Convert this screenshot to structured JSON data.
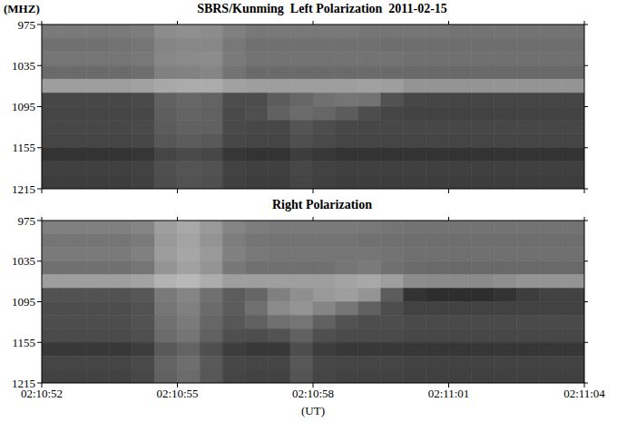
{
  "chart_data": [
    {
      "type": "heatmap",
      "title": "SBRS/Kunming  Left Polarization  2011-02-15",
      "y_label": "(MHZ)",
      "tick_labels": "y",
      "x": [
        52.25,
        52.75,
        53.25,
        53.75,
        54.25,
        54.75,
        55.25,
        55.75,
        56.25,
        56.75,
        57.25,
        57.75,
        58.25,
        58.75,
        59.25,
        59.75,
        60.25,
        60.75,
        61.25,
        61.75,
        62.25,
        62.75,
        63.25,
        63.75
      ],
      "y": [
        985,
        1005,
        1025,
        1045,
        1065,
        1085,
        1105,
        1125,
        1145,
        1165,
        1185,
        1205
      ],
      "xlim": [
        52,
        64
      ],
      "xticks": [
        {
          "value": 52,
          "label": "02:10:52"
        },
        {
          "value": 55,
          "label": "02:10:55"
        },
        {
          "value": 58,
          "label": "02:10:58"
        },
        {
          "value": 61,
          "label": "02:11:01"
        },
        {
          "value": 64,
          "label": "02:11:04"
        }
      ],
      "ylim": [
        975,
        1215
      ],
      "yticks": [
        975,
        1035,
        1095,
        1155,
        1215
      ],
      "zlim": [
        0,
        100
      ],
      "z": [
        [
          48,
          48,
          47,
          48,
          49,
          55,
          56,
          55,
          50,
          47,
          47,
          47,
          47,
          47,
          46,
          46,
          46,
          46,
          45,
          45,
          45,
          45,
          45,
          45
        ],
        [
          44,
          44,
          44,
          45,
          46,
          52,
          53,
          53,
          47,
          44,
          44,
          44,
          44,
          44,
          44,
          43,
          43,
          43,
          43,
          43,
          43,
          43,
          43,
          43
        ],
        [
          46,
          46,
          46,
          46,
          47,
          53,
          54,
          55,
          48,
          45,
          45,
          45,
          45,
          45,
          45,
          45,
          44,
          44,
          44,
          44,
          44,
          44,
          44,
          44
        ],
        [
          42,
          42,
          42,
          42,
          43,
          50,
          51,
          52,
          45,
          42,
          42,
          42,
          42,
          42,
          42,
          42,
          41,
          41,
          41,
          41,
          41,
          41,
          41,
          41
        ],
        [
          62,
          62,
          62,
          62,
          63,
          66,
          67,
          67,
          63,
          62,
          62,
          62,
          62,
          62,
          63,
          62,
          58,
          58,
          58,
          58,
          58,
          58,
          58,
          58
        ],
        [
          28,
          28,
          28,
          28,
          29,
          38,
          40,
          39,
          30,
          30,
          36,
          40,
          44,
          46,
          45,
          32,
          28,
          27,
          27,
          27,
          27,
          27,
          27,
          27
        ],
        [
          27,
          27,
          27,
          27,
          28,
          37,
          39,
          38,
          29,
          31,
          38,
          42,
          40,
          36,
          30,
          27,
          26,
          26,
          26,
          26,
          26,
          26,
          26,
          26
        ],
        [
          28,
          28,
          28,
          28,
          29,
          36,
          38,
          38,
          29,
          28,
          28,
          33,
          30,
          28,
          28,
          28,
          28,
          28,
          28,
          28,
          28,
          28,
          28,
          28
        ],
        [
          27,
          27,
          27,
          27,
          28,
          34,
          36,
          35,
          28,
          27,
          27,
          31,
          29,
          27,
          27,
          27,
          27,
          27,
          27,
          27,
          27,
          27,
          27,
          27
        ],
        [
          20,
          20,
          20,
          20,
          21,
          27,
          29,
          28,
          21,
          20,
          20,
          24,
          22,
          20,
          20,
          20,
          20,
          20,
          20,
          20,
          20,
          20,
          20,
          20
        ],
        [
          25,
          25,
          25,
          25,
          26,
          31,
          33,
          32,
          26,
          25,
          25,
          28,
          26,
          25,
          25,
          25,
          25,
          25,
          25,
          25,
          25,
          25,
          25,
          25
        ],
        [
          24,
          24,
          24,
          24,
          25,
          30,
          32,
          31,
          25,
          24,
          24,
          27,
          25,
          24,
          24,
          24,
          24,
          24,
          24,
          24,
          24,
          24,
          24,
          24
        ]
      ]
    },
    {
      "type": "heatmap",
      "title": "Right Polarization",
      "x_label": "(UT)",
      "x": [
        52.25,
        52.75,
        53.25,
        53.75,
        54.25,
        54.75,
        55.25,
        55.75,
        56.25,
        56.75,
        57.25,
        57.75,
        58.25,
        58.75,
        59.25,
        59.75,
        60.25,
        60.75,
        61.25,
        61.75,
        62.25,
        62.75,
        63.25,
        63.75
      ],
      "y": [
        985,
        1005,
        1025,
        1045,
        1065,
        1085,
        1105,
        1125,
        1145,
        1165,
        1185,
        1205
      ],
      "xlim": [
        52,
        64
      ],
      "xticks": [
        {
          "value": 52,
          "label": "02:10:52"
        },
        {
          "value": 55,
          "label": "02:10:55"
        },
        {
          "value": 58,
          "label": "02:10:58"
        },
        {
          "value": 61,
          "label": "02:11:01"
        },
        {
          "value": 64,
          "label": "02:11:04"
        }
      ],
      "ylim": [
        975,
        1215
      ],
      "yticks": [
        975,
        1035,
        1095,
        1155,
        1215
      ],
      "zlim": [
        0,
        100
      ],
      "z": [
        [
          50,
          50,
          50,
          50,
          52,
          62,
          66,
          60,
          52,
          49,
          48,
          48,
          48,
          48,
          47,
          46,
          45,
          45,
          45,
          45,
          45,
          45,
          45,
          45
        ],
        [
          46,
          46,
          46,
          46,
          48,
          60,
          64,
          58,
          49,
          46,
          45,
          45,
          45,
          45,
          44,
          44,
          43,
          43,
          43,
          43,
          43,
          43,
          43,
          43
        ],
        [
          48,
          48,
          48,
          48,
          50,
          61,
          65,
          60,
          50,
          47,
          46,
          46,
          46,
          46,
          46,
          45,
          44,
          44,
          44,
          44,
          44,
          44,
          44,
          44
        ],
        [
          44,
          44,
          44,
          44,
          46,
          58,
          63,
          58,
          47,
          44,
          44,
          44,
          44,
          46,
          48,
          44,
          42,
          41,
          41,
          41,
          41,
          41,
          41,
          41
        ],
        [
          62,
          62,
          62,
          62,
          64,
          70,
          72,
          68,
          62,
          62,
          62,
          62,
          62,
          64,
          66,
          62,
          55,
          54,
          54,
          54,
          56,
          58,
          58,
          58
        ],
        [
          32,
          32,
          32,
          32,
          34,
          48,
          52,
          44,
          36,
          40,
          50,
          56,
          60,
          62,
          58,
          36,
          20,
          18,
          18,
          18,
          20,
          24,
          26,
          26
        ],
        [
          30,
          30,
          30,
          30,
          32,
          46,
          50,
          42,
          36,
          44,
          54,
          58,
          52,
          46,
          38,
          30,
          26,
          26,
          26,
          26,
          26,
          26,
          26,
          26
        ],
        [
          30,
          30,
          30,
          30,
          32,
          44,
          48,
          40,
          34,
          38,
          44,
          46,
          38,
          32,
          30,
          30,
          29,
          29,
          29,
          29,
          29,
          29,
          29,
          29
        ],
        [
          29,
          29,
          29,
          29,
          31,
          42,
          46,
          38,
          31,
          30,
          32,
          38,
          31,
          29,
          29,
          29,
          28,
          28,
          28,
          28,
          28,
          28,
          28,
          28
        ],
        [
          22,
          22,
          22,
          22,
          24,
          35,
          39,
          31,
          24,
          22,
          22,
          30,
          24,
          22,
          22,
          22,
          21,
          21,
          21,
          21,
          21,
          21,
          21,
          21
        ],
        [
          27,
          27,
          27,
          27,
          29,
          39,
          43,
          35,
          28,
          27,
          27,
          34,
          28,
          27,
          27,
          27,
          26,
          26,
          26,
          26,
          26,
          26,
          26,
          26
        ],
        [
          26,
          26,
          26,
          26,
          28,
          38,
          42,
          34,
          27,
          26,
          26,
          33,
          27,
          26,
          26,
          26,
          25,
          25,
          25,
          25,
          25,
          25,
          25,
          25
        ]
      ]
    }
  ]
}
